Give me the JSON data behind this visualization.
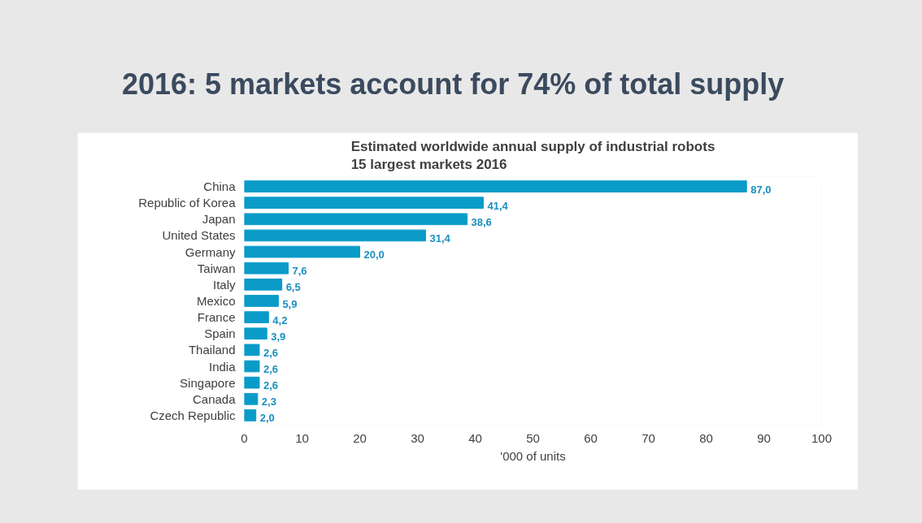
{
  "chart_data": {
    "type": "bar",
    "orientation": "horizontal",
    "title": "2016: 5 markets account for 74% of total supply",
    "subtitle": "Estimated worldwide annual supply of industrial robots\n15 largest markets 2016",
    "xlabel": "'000 of units",
    "categories": [
      "China",
      "Republic of Korea",
      "Japan",
      "United States",
      "Germany",
      "Taiwan",
      "Italy",
      "Mexico",
      "France",
      "Spain",
      "Thailand",
      "India",
      "Singapore",
      "Canada",
      "Czech Republic"
    ],
    "values": [
      87.0,
      41.4,
      38.6,
      31.4,
      20.0,
      7.6,
      6.5,
      5.9,
      4.2,
      3.9,
      2.6,
      2.6,
      2.6,
      2.3,
      2.0
    ],
    "value_labels": [
      "87,0",
      "41,4",
      "38,6",
      "31,4",
      "20,0",
      "7,6",
      "6,5",
      "5,9",
      "4,2",
      "3,9",
      "2,6",
      "2,6",
      "2,6",
      "2,3",
      "2,0"
    ],
    "color": "#0a9bc9",
    "xlim": [
      0,
      100
    ],
    "xticks": [
      0,
      10,
      20,
      30,
      40,
      50,
      60,
      70,
      80,
      90,
      100
    ],
    "grid": false
  }
}
